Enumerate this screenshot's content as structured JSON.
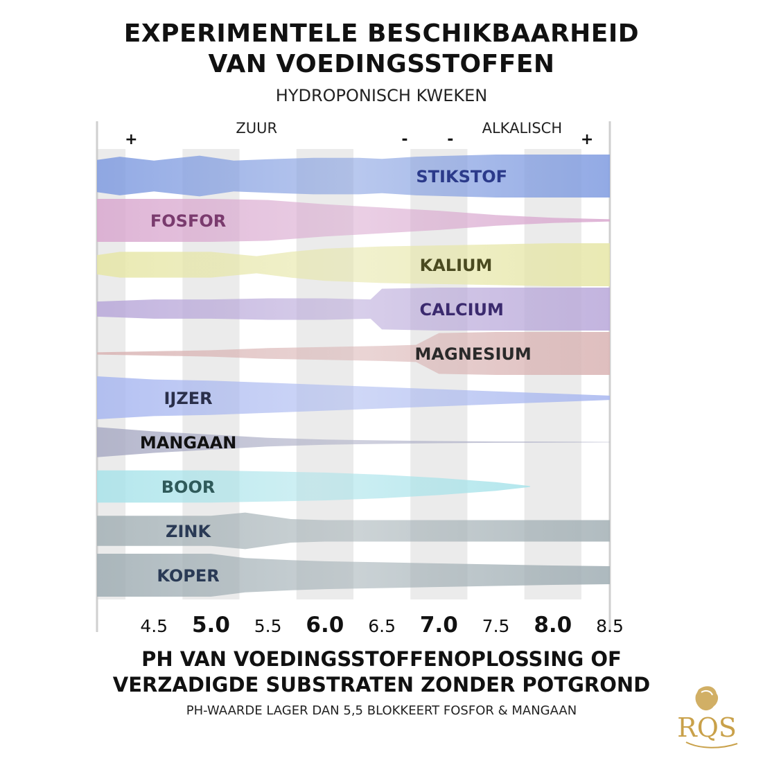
{
  "chart_data": {
    "type": "area",
    "title": "EXPERIMENTELE BESCHIKBAARHEID",
    "title_line2": "VAN VOEDINGSSTOFFEN",
    "subtitle": "HYDROPONISCH KWEKEN",
    "xlabel_line1": "PH VAN VOEDINGSSTOFFENOPLOSSING OF",
    "xlabel_line2": "VERZADIGDE SUBSTRATEN ZONDER POTGROND",
    "note": "PH-WAARDE LAGER DAN 5,5 BLOKKEERT FOSFOR & MANGAAN",
    "xlim": [
      4.0,
      8.5
    ],
    "ticks": [
      {
        "value": 4.5,
        "label": "4.5",
        "bold": false
      },
      {
        "value": 5.0,
        "label": "5.0",
        "bold": true
      },
      {
        "value": 5.5,
        "label": "5.5",
        "bold": false
      },
      {
        "value": 6.0,
        "label": "6.0",
        "bold": true
      },
      {
        "value": 6.5,
        "label": "6.5",
        "bold": false
      },
      {
        "value": 7.0,
        "label": "7.0",
        "bold": true
      },
      {
        "value": 7.5,
        "label": "7.5",
        "bold": false
      },
      {
        "value": 8.0,
        "label": "8.0",
        "bold": true
      },
      {
        "value": 8.5,
        "label": "8.5",
        "bold": false
      }
    ],
    "acid_label": "ZUUR",
    "alkaline_label": "ALKALISCH",
    "scale_markers": [
      {
        "x": 4.3,
        "label": "+"
      },
      {
        "x": 6.7,
        "label": "-"
      },
      {
        "x": 7.1,
        "label": "-"
      },
      {
        "x": 8.3,
        "label": "+"
      }
    ],
    "note_availability": "relative availability 0-1 per nutrient band",
    "series": [
      {
        "name": "STIKSTOF",
        "color": "#7f9be0",
        "label_color": "#2b3a8a",
        "label_x": 7.2,
        "x": [
          4.0,
          4.2,
          4.5,
          4.9,
          5.2,
          5.6,
          5.9,
          6.3,
          6.5,
          6.8,
          7.5,
          8.0,
          8.5
        ],
        "values": [
          0.75,
          0.9,
          0.72,
          0.95,
          0.72,
          0.8,
          0.85,
          0.85,
          0.8,
          0.9,
          1.0,
          1.0,
          1.0
        ]
      },
      {
        "name": "FOSFOR",
        "color": "#d9a8cf",
        "label_color": "#7a3b6e",
        "label_x": 4.8,
        "x": [
          4.0,
          5.0,
          5.5,
          6.0,
          6.5,
          7.0,
          7.5,
          8.0,
          8.5
        ],
        "values": [
          1.0,
          1.0,
          0.95,
          0.75,
          0.6,
          0.45,
          0.25,
          0.12,
          0.05
        ]
      },
      {
        "name": "KALIUM",
        "color": "#e6e6a6",
        "label_color": "#4a4a20",
        "label_x": 7.15,
        "x": [
          4.0,
          4.2,
          5.0,
          5.4,
          5.7,
          6.0,
          6.5,
          7.0,
          7.5,
          8.0,
          8.5
        ],
        "values": [
          0.45,
          0.6,
          0.6,
          0.4,
          0.6,
          0.75,
          0.85,
          0.9,
          0.95,
          1.0,
          1.0
        ]
      },
      {
        "name": "CALCIUM",
        "color": "#b8a7d9",
        "label_color": "#3b2a6e",
        "label_x": 7.2,
        "x": [
          4.0,
          4.5,
          5.0,
          5.5,
          6.0,
          6.4,
          6.5,
          7.0,
          7.5,
          8.0,
          8.5
        ],
        "values": [
          0.35,
          0.45,
          0.45,
          0.5,
          0.5,
          0.45,
          0.95,
          1.0,
          1.0,
          1.0,
          1.0
        ]
      },
      {
        "name": "MAGNESIUM",
        "color": "#d9b3b3",
        "label_color": "#2a2a2a",
        "label_x": 7.3,
        "x": [
          4.0,
          4.5,
          5.0,
          5.5,
          6.0,
          6.5,
          6.8,
          7.0,
          7.5,
          8.0,
          8.5
        ],
        "values": [
          0.05,
          0.1,
          0.15,
          0.25,
          0.3,
          0.35,
          0.4,
          0.95,
          1.0,
          1.0,
          1.0
        ]
      },
      {
        "name": "IJZER",
        "color": "#a8b7f0",
        "label_color": "#2a2f4a",
        "label_x": 4.8,
        "x": [
          4.0,
          4.5,
          5.0,
          5.5,
          6.0,
          6.5,
          7.0,
          7.5,
          8.0,
          8.5
        ],
        "values": [
          1.0,
          0.85,
          0.8,
          0.7,
          0.6,
          0.5,
          0.4,
          0.3,
          0.2,
          0.1
        ]
      },
      {
        "name": "MANGAAN",
        "color": "#a9abc4",
        "label_color": "#111111",
        "label_x": 4.8,
        "x": [
          4.0,
          4.5,
          5.0,
          5.5,
          6.0,
          6.5,
          7.0,
          7.5,
          8.0,
          8.5
        ],
        "values": [
          0.7,
          0.5,
          0.35,
          0.2,
          0.12,
          0.08,
          0.05,
          0.03,
          0.02,
          0.01
        ]
      },
      {
        "name": "BOOR",
        "color": "#a8e3ea",
        "label_color": "#2f5a5a",
        "label_x": 4.8,
        "x": [
          4.0,
          4.5,
          5.0,
          5.5,
          6.0,
          6.5,
          7.0,
          7.5,
          7.8
        ],
        "values": [
          0.75,
          0.75,
          0.75,
          0.7,
          0.65,
          0.55,
          0.4,
          0.2,
          0.02
        ]
      },
      {
        "name": "ZINK",
        "color": "#a3b0b5",
        "label_color": "#2a3a55",
        "label_x": 4.8,
        "x": [
          4.0,
          4.5,
          5.0,
          5.3,
          5.7,
          6.0,
          6.5,
          7.0,
          7.5,
          8.0,
          8.5
        ],
        "values": [
          0.7,
          0.7,
          0.7,
          0.85,
          0.55,
          0.5,
          0.5,
          0.5,
          0.5,
          0.5,
          0.5
        ]
      },
      {
        "name": "KOPER",
        "color": "#9fadb3",
        "label_color": "#2a3a55",
        "label_x": 4.8,
        "x": [
          4.0,
          4.5,
          5.0,
          5.3,
          5.7,
          6.0,
          6.5,
          7.0,
          7.5,
          8.0,
          8.5
        ],
        "values": [
          1.0,
          1.0,
          1.0,
          0.8,
          0.7,
          0.65,
          0.6,
          0.55,
          0.5,
          0.45,
          0.42
        ]
      }
    ]
  },
  "logo": {
    "text": "RQS",
    "color": "#c9a14a"
  }
}
